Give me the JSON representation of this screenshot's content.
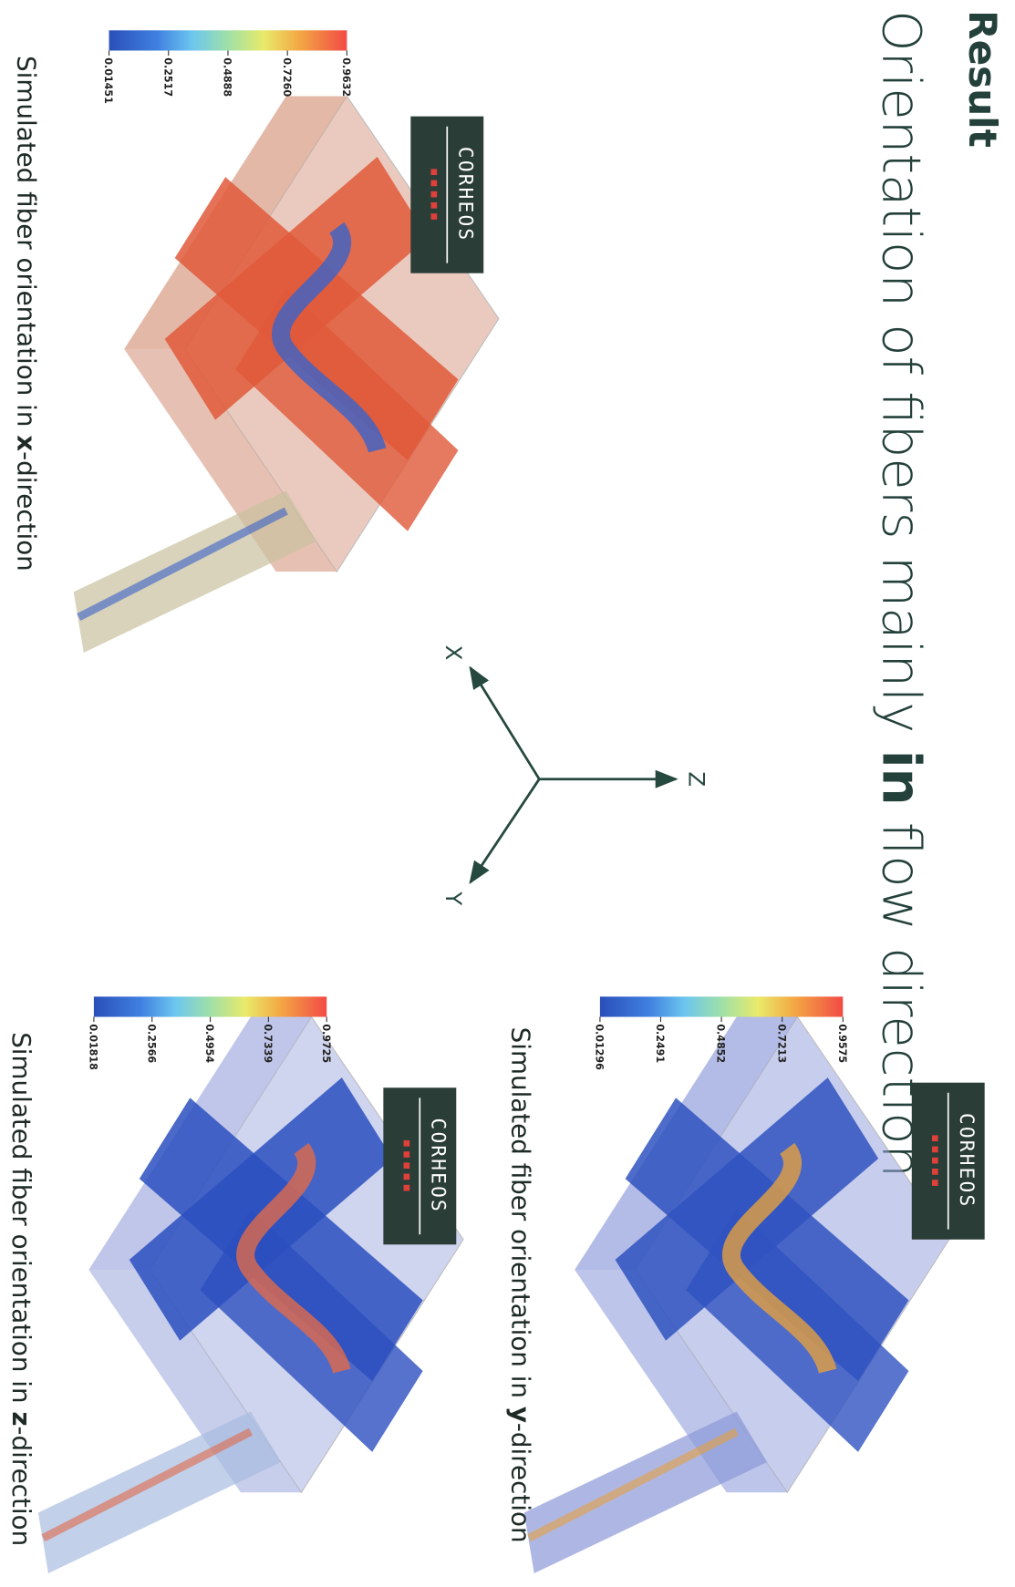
{
  "header": {
    "section": "Result",
    "title": [
      "Orientation of fibers mainly ",
      "in",
      " flow direction"
    ]
  },
  "axes": {
    "x": "X",
    "y": "Y",
    "z": "Z"
  },
  "panels": [
    {
      "caption": [
        "Simulated fiber orientation in ",
        "x",
        "-direction"
      ],
      "logo": "CORHEOS",
      "colorbar": [
        "0.01451",
        "0.2517",
        "0.4888",
        "0.7260",
        "0.9632"
      ]
    },
    {
      "caption": [
        "Simulated fiber orientation in ",
        "y",
        "-direction"
      ],
      "logo": "CORHEOS",
      "colorbar": [
        "0.01296",
        "0.2491",
        "0.4852",
        "0.7213",
        "0.9575"
      ]
    },
    {
      "caption": [
        "Simulated fiber orientation in ",
        "z",
        "-direction"
      ],
      "logo": "CORHEOS",
      "colorbar": [
        "0.01818",
        "0.2566",
        "0.4954",
        "0.7339",
        "0.9725"
      ]
    }
  ]
}
